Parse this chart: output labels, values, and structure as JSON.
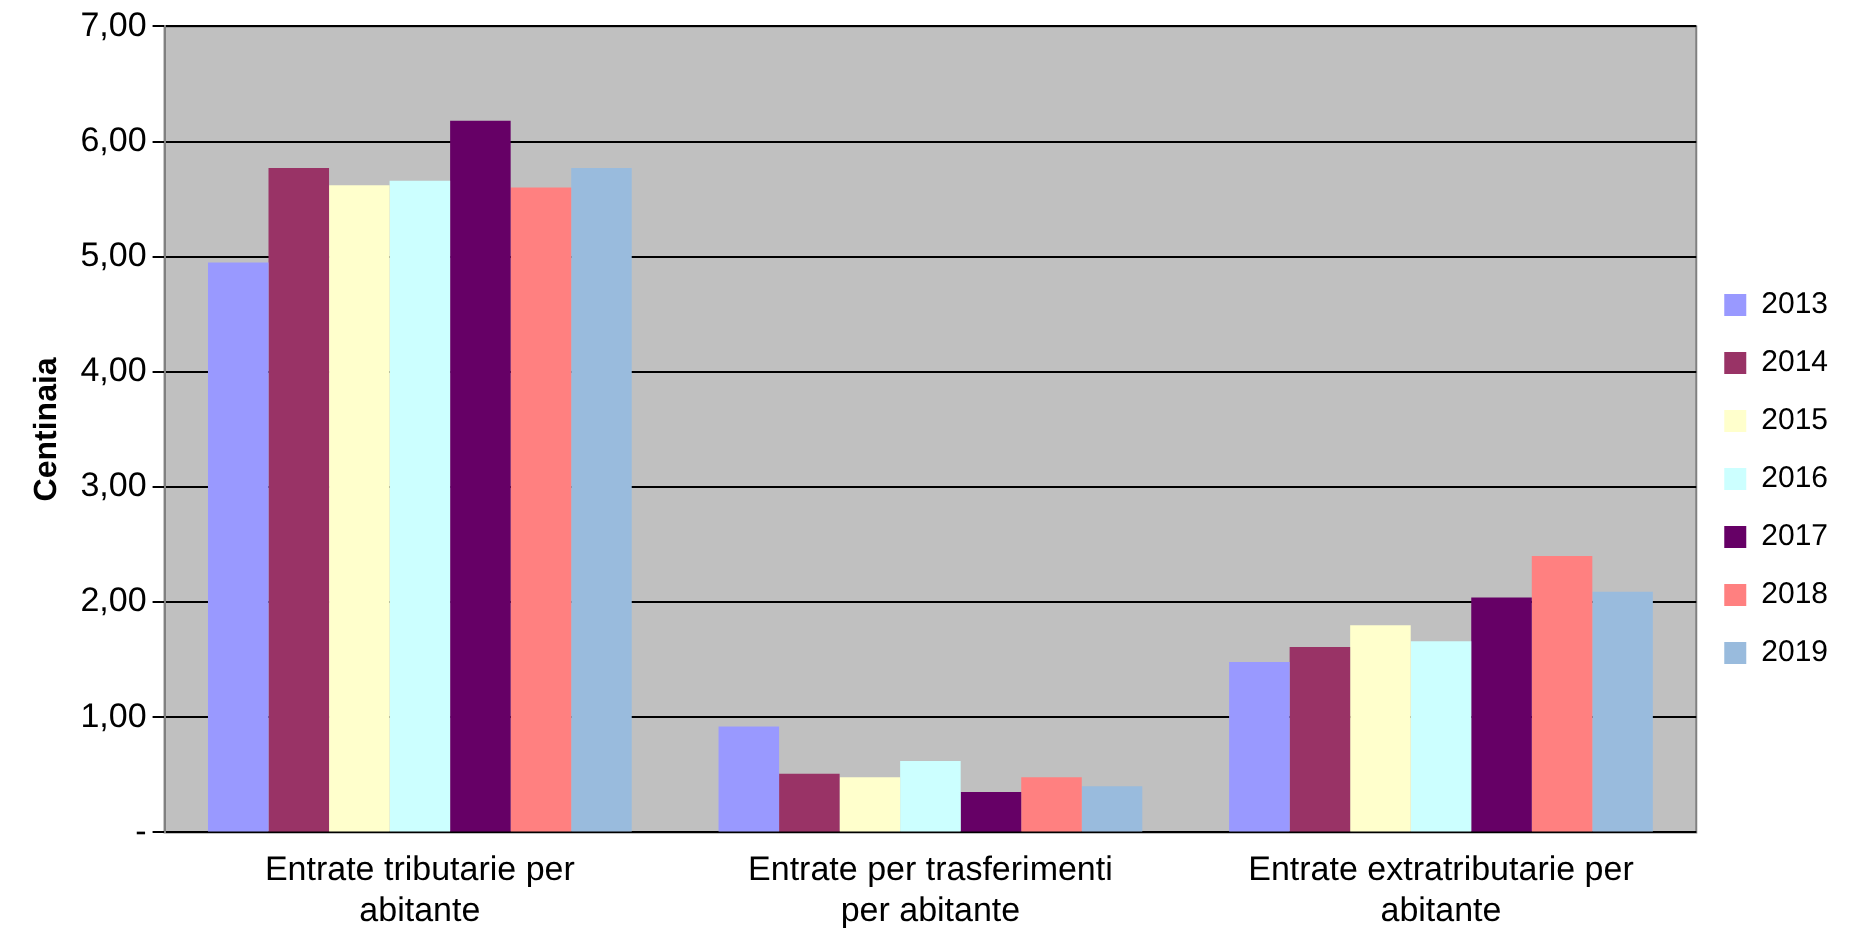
{
  "chart_data": {
    "type": "bar",
    "ylabel": "Centinaia",
    "categories": [
      "Entrate tributarie per abitante",
      "Entrate per trasferimenti per abitante",
      "Entrate extratributarie per abitante"
    ],
    "series": [
      {
        "name": "2013",
        "color": "#9999ff",
        "values": [
          4.95,
          0.92,
          1.48
        ]
      },
      {
        "name": "2014",
        "color": "#993366",
        "values": [
          5.77,
          0.51,
          1.61
        ]
      },
      {
        "name": "2015",
        "color": "#ffffcc",
        "values": [
          5.62,
          0.48,
          1.8
        ]
      },
      {
        "name": "2016",
        "color": "#ccffff",
        "values": [
          5.66,
          0.62,
          1.66
        ]
      },
      {
        "name": "2017",
        "color": "#660066",
        "values": [
          6.18,
          0.35,
          2.04
        ]
      },
      {
        "name": "2018",
        "color": "#ff8080",
        "values": [
          5.6,
          0.48,
          2.4
        ]
      },
      {
        "name": "2019",
        "color": "#99bbdd",
        "values": [
          5.77,
          0.4,
          2.09
        ]
      }
    ],
    "ylim": [
      0,
      7
    ],
    "yticks": [
      {
        "value": 0,
        "label": "-"
      },
      {
        "value": 1,
        "label": "1,00"
      },
      {
        "value": 2,
        "label": "2,00"
      },
      {
        "value": 3,
        "label": "3,00"
      },
      {
        "value": 4,
        "label": "4,00"
      },
      {
        "value": 5,
        "label": "5,00"
      },
      {
        "value": 6,
        "label": "6,00"
      },
      {
        "value": 7,
        "label": "7,00"
      }
    ],
    "grid": "y",
    "legend": "right"
  }
}
